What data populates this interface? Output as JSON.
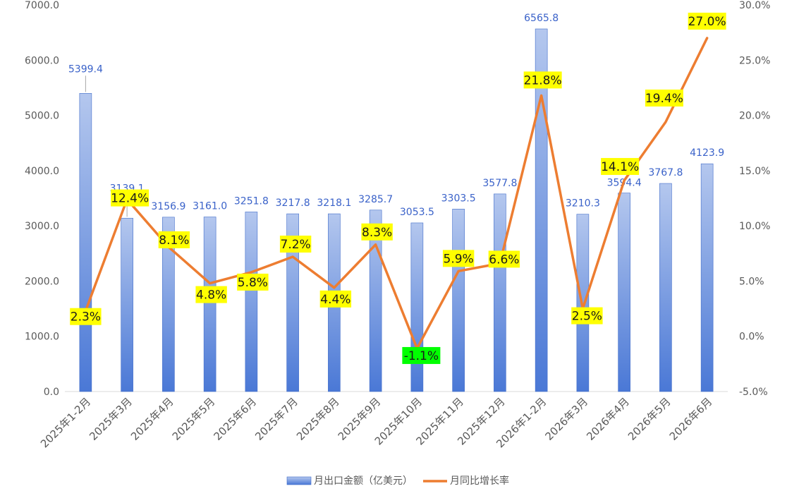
{
  "chart_data": {
    "type": "bar",
    "categories": [
      "2025年1-2月",
      "2025年3月",
      "2025年4月",
      "2025年5月",
      "2025年6月",
      "2025年7月",
      "2025年8月",
      "2025年9月",
      "2025年10月",
      "2025年11月",
      "2025年12月",
      "2026年1-2月",
      "2026年3月",
      "2026年4月",
      "2026年5月",
      "2026年6月"
    ],
    "series": [
      {
        "name": "月出口金额（亿美元）",
        "type": "bar",
        "axis": "left",
        "values": [
          5399.4,
          3139.1,
          3156.9,
          3161.0,
          3251.8,
          3217.8,
          3218.1,
          3285.7,
          3053.5,
          3303.5,
          3577.8,
          6565.8,
          3210.3,
          3594.4,
          3767.8,
          4123.9
        ],
        "labels": [
          "5399.4",
          "3139.1",
          "3156.9",
          "3161.0",
          "3251.8",
          "3217.8",
          "3218.1",
          "3285.7",
          "3053.5",
          "3303.5",
          "3577.8",
          "6565.8",
          "3210.3",
          "3594.4",
          "3767.8",
          "4123.9"
        ]
      },
      {
        "name": "月同比增长率",
        "type": "line",
        "axis": "right",
        "values": [
          2.3,
          12.4,
          8.1,
          4.8,
          5.8,
          7.2,
          4.4,
          8.3,
          -1.1,
          5.9,
          6.6,
          21.8,
          2.5,
          14.1,
          19.4,
          27.0
        ],
        "labels": [
          "2.3%",
          "12.4%",
          "8.1%",
          "4.8%",
          "5.8%",
          "7.2%",
          "4.4%",
          "8.3%",
          "-1.1%",
          "5.9%",
          "6.6%",
          "21.8%",
          "2.5%",
          "14.1%",
          "19.4%",
          "27.0%"
        ]
      }
    ],
    "y_left": {
      "ylim": [
        0,
        7000
      ],
      "ticks": [
        "0.0",
        "1000.0",
        "2000.0",
        "3000.0",
        "4000.0",
        "5000.0",
        "6000.0",
        "7000.0"
      ]
    },
    "y_right": {
      "ylim": [
        -5,
        30
      ],
      "ticks": [
        "-5.0%",
        "0.0%",
        "5.0%",
        "10.0%",
        "15.0%",
        "20.0%",
        "25.0%",
        "30.0%"
      ]
    },
    "title": "",
    "xlabel": "",
    "ylabel": "",
    "grid": false,
    "legend_position": "bottom",
    "colors": {
      "bar_top": "#b4c7ee",
      "bar_bottom": "#4a78d6",
      "bar_stroke": "#3f6cc9",
      "line": "#ed7d31",
      "bar_label": "#3a62c9",
      "label_bg": "#ffff00",
      "label_bg_negative": "#00ff00",
      "axis_text": "#595959"
    }
  }
}
